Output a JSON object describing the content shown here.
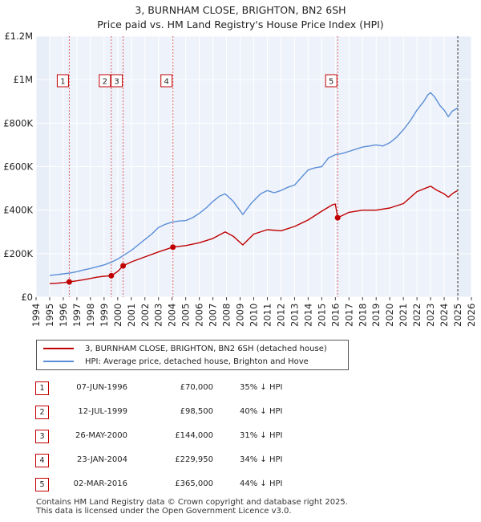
{
  "title_line1": "3, BURNHAM CLOSE, BRIGHTON, BN2 6SH",
  "title_line2": "Price paid vs. HM Land Registry's House Price Index (HPI)",
  "chart_data": {
    "type": "line",
    "title": "3, BURNHAM CLOSE, BRIGHTON, BN2 6SH — Price paid vs. HM Land Registry's House Price Index (HPI)",
    "xlabel": "",
    "ylabel": "",
    "xlim": [
      1994,
      2026
    ],
    "ylim": [
      0,
      1200000
    ],
    "x_ticks": [
      1994,
      1995,
      1996,
      1997,
      1998,
      1999,
      2000,
      2001,
      2002,
      2003,
      2004,
      2005,
      2006,
      2007,
      2008,
      2009,
      2010,
      2011,
      2012,
      2013,
      2014,
      2015,
      2016,
      2017,
      2018,
      2019,
      2020,
      2021,
      2022,
      2023,
      2024,
      2025,
      2026
    ],
    "y_ticks": [
      {
        "value": 0,
        "label": "£0"
      },
      {
        "value": 200000,
        "label": "£200K"
      },
      {
        "value": 400000,
        "label": "£400K"
      },
      {
        "value": 600000,
        "label": "£600K"
      },
      {
        "value": 800000,
        "label": "£800K"
      },
      {
        "value": 1000000,
        "label": "£1M"
      },
      {
        "value": 1200000,
        "label": "£1.2M"
      }
    ],
    "data_range": [
      1995.0,
      2025.0
    ],
    "grid": true,
    "series": [
      {
        "name": "3, BURNHAM CLOSE, BRIGHTON, BN2 6SH (detached house)",
        "color": "#c00000",
        "x": [
          1995.0,
          1995.5,
          1996.0,
          1996.44,
          1996.44,
          1997.0,
          1997.5,
          1998.0,
          1998.5,
          1999.0,
          1999.53,
          1999.53,
          2000.0,
          2000.4,
          2000.4,
          2001.0,
          2002.0,
          2003.0,
          2004.06,
          2004.06,
          2005.0,
          2006.0,
          2007.0,
          2007.9,
          2008.5,
          2009.2,
          2010.0,
          2011.0,
          2012.0,
          2013.0,
          2014.0,
          2015.0,
          2015.8,
          2016.0,
          2016.17,
          2016.17,
          2017.0,
          2018.0,
          2019.0,
          2020.0,
          2021.0,
          2022.0,
          2022.8,
          2023.0,
          2023.5,
          2024.0,
          2024.3,
          2024.7,
          2025.0
        ],
        "values": [
          62000,
          64000,
          67000,
          70000,
          70000,
          75000,
          80000,
          86000,
          92000,
          96000,
          98500,
          98500,
          118000,
          144000,
          144000,
          162000,
          185000,
          208000,
          229950,
          229950,
          237000,
          250000,
          270000,
          300000,
          280000,
          240000,
          290000,
          310000,
          305000,
          325000,
          355000,
          395000,
          425000,
          428000,
          365000,
          365000,
          390000,
          400000,
          400000,
          410000,
          430000,
          485000,
          505000,
          510000,
          490000,
          475000,
          460000,
          480000,
          490000
        ]
      },
      {
        "name": "HPI: Average price, detached house, Brighton and Hove",
        "color": "#5b8ed6",
        "x": [
          1995.0,
          1995.5,
          1996.0,
          1996.5,
          1997.0,
          1997.5,
          1998.0,
          1998.5,
          1999.0,
          1999.5,
          2000.0,
          2000.5,
          2001.0,
          2001.5,
          2002.0,
          2002.5,
          2003.0,
          2003.5,
          2004.0,
          2004.5,
          2005.0,
          2005.5,
          2006.0,
          2006.5,
          2007.0,
          2007.5,
          2007.9,
          2008.5,
          2009.2,
          2009.8,
          2010.5,
          2011.0,
          2011.5,
          2012.0,
          2012.5,
          2013.0,
          2013.5,
          2014.0,
          2014.5,
          2015.0,
          2015.5,
          2016.0,
          2016.5,
          2017.0,
          2017.5,
          2018.0,
          2018.5,
          2019.0,
          2019.5,
          2020.0,
          2020.5,
          2021.0,
          2021.5,
          2022.0,
          2022.5,
          2022.8,
          2023.0,
          2023.3,
          2023.7,
          2024.0,
          2024.3,
          2024.6,
          2025.0
        ],
        "values": [
          100000,
          103000,
          107000,
          111000,
          117000,
          125000,
          132000,
          140000,
          148000,
          160000,
          175000,
          195000,
          215000,
          240000,
          265000,
          290000,
          320000,
          335000,
          345000,
          350000,
          352000,
          365000,
          385000,
          410000,
          440000,
          465000,
          475000,
          440000,
          380000,
          430000,
          475000,
          490000,
          480000,
          490000,
          505000,
          515000,
          550000,
          585000,
          595000,
          600000,
          640000,
          655000,
          660000,
          670000,
          680000,
          690000,
          695000,
          700000,
          695000,
          710000,
          735000,
          770000,
          810000,
          860000,
          900000,
          930000,
          940000,
          920000,
          880000,
          860000,
          830000,
          855000,
          870000
        ]
      }
    ],
    "markers": [
      {
        "label": "1",
        "x": 1996.44,
        "y": 70000
      },
      {
        "label": "2",
        "x": 1999.53,
        "y": 98500
      },
      {
        "label": "3",
        "x": 2000.4,
        "y": 144000
      },
      {
        "label": "4",
        "x": 2004.06,
        "y": 229950
      },
      {
        "label": "5",
        "x": 2016.17,
        "y": 365000
      }
    ]
  },
  "legend": {
    "items": [
      {
        "label": "3, BURNHAM CLOSE, BRIGHTON, BN2 6SH (detached house)",
        "color": "#c00000"
      },
      {
        "label": "HPI: Average price, detached house, Brighton and Hove",
        "color": "#5b8ed6"
      }
    ]
  },
  "sales": [
    {
      "num": "1",
      "date": "07-JUN-1996",
      "price": "£70,000",
      "hpi": "35% ↓ HPI"
    },
    {
      "num": "2",
      "date": "12-JUL-1999",
      "price": "£98,500",
      "hpi": "40% ↓ HPI"
    },
    {
      "num": "3",
      "date": "26-MAY-2000",
      "price": "£144,000",
      "hpi": "31% ↓ HPI"
    },
    {
      "num": "4",
      "date": "23-JAN-2004",
      "price": "£229,950",
      "hpi": "34% ↓ HPI"
    },
    {
      "num": "5",
      "date": "02-MAR-2016",
      "price": "£365,000",
      "hpi": "44% ↓ HPI"
    }
  ],
  "footer": {
    "line1": "Contains HM Land Registry data © Crown copyright and database right 2025.",
    "line2": "This data is licensed under the Open Government Licence v3.0."
  }
}
